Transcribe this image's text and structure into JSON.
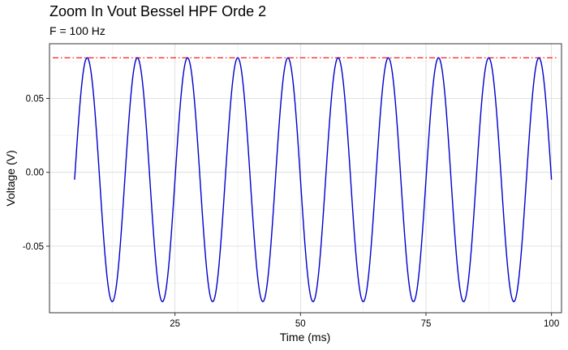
{
  "chart_data": {
    "type": "line",
    "title": "Zoom In Vout Bessel HPF Orde 2",
    "subtitle": "F = 100 Hz",
    "xlabel": "Time (ms)",
    "ylabel": "Voltage (V)",
    "xlim": [
      0,
      102
    ],
    "ylim": [
      -0.095,
      0.087
    ],
    "x_ticks": [
      25,
      50,
      75,
      100
    ],
    "x_tick_labels": [
      "25",
      "50",
      "75",
      "100"
    ],
    "y_ticks": [
      -0.05,
      0.0,
      0.05
    ],
    "y_tick_labels": [
      "-0.05",
      "0.00",
      "0.05"
    ],
    "grid": true,
    "legend": "none",
    "series": [
      {
        "style": "solid",
        "color": "#0000cc",
        "x_start": 5,
        "x_end": 100,
        "frequency_hz": 100,
        "amplitude": 0.0825,
        "offset": -0.005,
        "phase_peak_ms": 7.5
      }
    ],
    "reference_lines": [
      {
        "orientation": "horizontal",
        "value": 0.0775,
        "style": "dashdot",
        "color": "#ff0000"
      }
    ]
  },
  "colors": {
    "panel_border": "#333333",
    "grid_major": "#d9d9d9",
    "grid_minor": "#ededed",
    "background": "#ffffff"
  }
}
